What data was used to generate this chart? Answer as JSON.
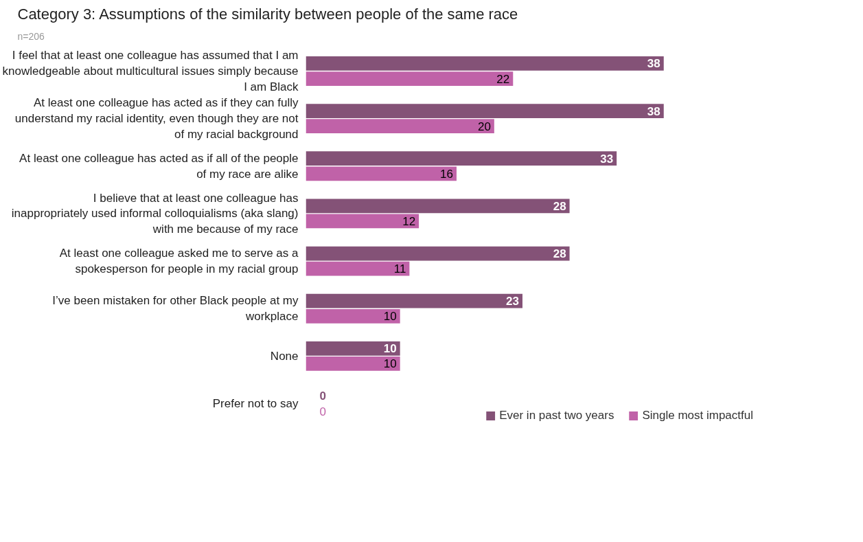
{
  "chart_data": {
    "type": "bar",
    "orientation": "horizontal",
    "title": "Category 3: Assumptions of the similarity between people of the same race",
    "subtitle": "n=206",
    "categories": [
      "I feel that at least one colleague has assumed that I am knowledgeable about multicultural issues simply because I am Black",
      "At least one colleague has acted as if they can fully understand my racial identity, even though they are not of my racial background",
      "At least one colleague has acted as if all of the people of my race are alike",
      "I believe that at least one colleague has inappropriately used informal colloquialisms (aka slang) with me because of my race",
      "At least one colleague asked me to serve as a spokesperson for people in my racial group",
      "I’ve been mistaken for other Black people at my workplace",
      "None",
      "Prefer not to say"
    ],
    "series": [
      {
        "name": "Ever in past two years",
        "color": "#845277",
        "values": [
          38,
          38,
          33,
          28,
          28,
          23,
          10,
          0
        ]
      },
      {
        "name": "Single most impactful",
        "color": "#c062a8",
        "values": [
          22,
          20,
          16,
          12,
          11,
          10,
          10,
          0
        ]
      }
    ],
    "data_labels": true,
    "legend": "bottom right",
    "tick_labels": "y",
    "grid": false
  }
}
